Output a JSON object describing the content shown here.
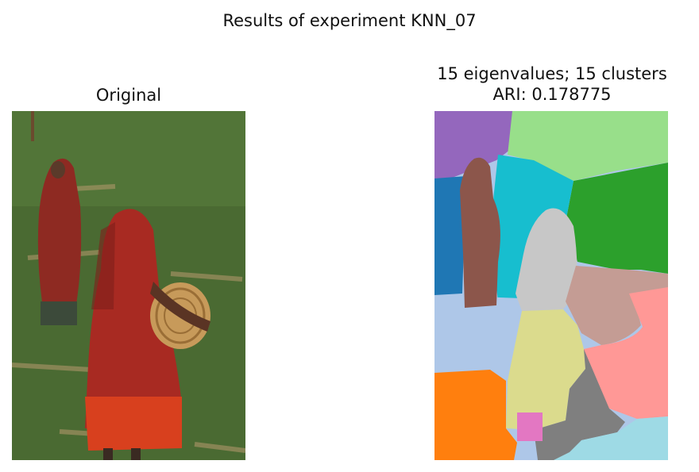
{
  "figure": {
    "suptitle": "Results of experiment KNN_07"
  },
  "panels": {
    "original": {
      "title": "Original"
    },
    "segmentation": {
      "title_line1": "15 eigenvalues; 15 clusters",
      "title_line2": "ARI: 0.178775"
    }
  },
  "colors": {
    "grass": "#4a6a32",
    "grass_dark": "#2f4520",
    "garment_red": "#a82a22",
    "skirt_orange": "#d8401e",
    "basket": "#c79a5a",
    "clusters": [
      "#9467bd",
      "#98df8a",
      "#17becf",
      "#2ca02c",
      "#1f77b4",
      "#8c564b",
      "#c7c7c7",
      "#c49c94",
      "#ff9896",
      "#aec7e8",
      "#dbdb8d",
      "#ff7f0e",
      "#7f7f7f",
      "#e377c2",
      "#9edae5"
    ]
  }
}
